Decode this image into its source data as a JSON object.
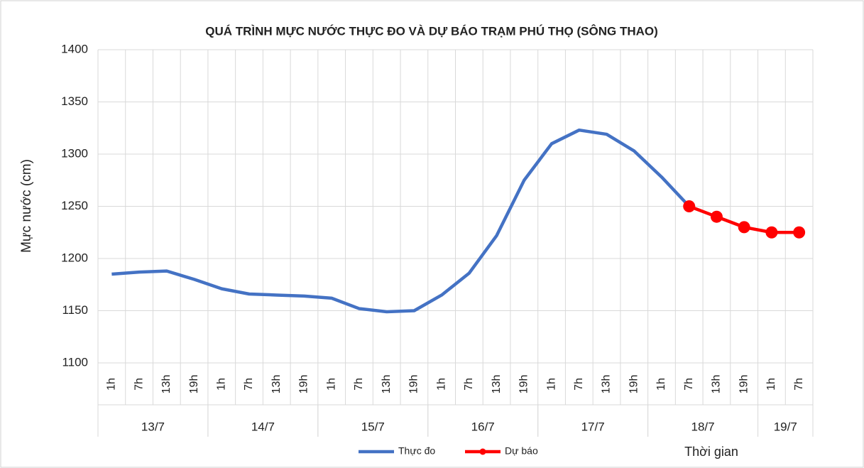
{
  "chart_data": {
    "type": "line",
    "title": "QUÁ TRÌNH MỰC NƯỚC THỰC ĐO VÀ DỰ BÁO TRẠM PHÚ THỌ (SÔNG THAO)",
    "y_label": "Mực nước (cm)",
    "x_label": "Thời gian",
    "category_groups": [
      {
        "label": "13/7",
        "categories": [
          "1h",
          "7h",
          "13h",
          "19h"
        ]
      },
      {
        "label": "14/7",
        "categories": [
          "1h",
          "7h",
          "13h",
          "19h"
        ]
      },
      {
        "label": "15/7",
        "categories": [
          "1h",
          "7h",
          "13h",
          "19h"
        ]
      },
      {
        "label": "16/7",
        "categories": [
          "1h",
          "7h",
          "13h",
          "19h"
        ]
      },
      {
        "label": "17/7",
        "categories": [
          "1h",
          "7h",
          "13h",
          "19h"
        ]
      },
      {
        "label": "18/7",
        "categories": [
          "1h",
          "7h",
          "13h",
          "19h"
        ]
      },
      {
        "label": "19/7",
        "categories": [
          "1h",
          "7h"
        ]
      }
    ],
    "series": [
      {
        "name": "Thực đo",
        "color": "#4472c4",
        "marker": false,
        "values": [
          1185,
          1187,
          1188,
          1180,
          1171,
          1166,
          1165,
          1164,
          1162,
          1152,
          1149,
          1150,
          1165,
          1186,
          1222,
          1275,
          1310,
          1323,
          1319,
          1303,
          1278,
          1250,
          null,
          null,
          null,
          null
        ]
      },
      {
        "name": "Dự báo",
        "color": "#ff0000",
        "marker": true,
        "values": [
          null,
          null,
          null,
          null,
          null,
          null,
          null,
          null,
          null,
          null,
          null,
          null,
          null,
          null,
          null,
          null,
          null,
          null,
          null,
          null,
          null,
          1250,
          1240,
          1230,
          1225,
          1225
        ]
      }
    ],
    "ylim": [
      1100,
      1400
    ],
    "yticks": [
      1100,
      1150,
      1200,
      1250,
      1300,
      1350,
      1400
    ],
    "grid": true
  }
}
